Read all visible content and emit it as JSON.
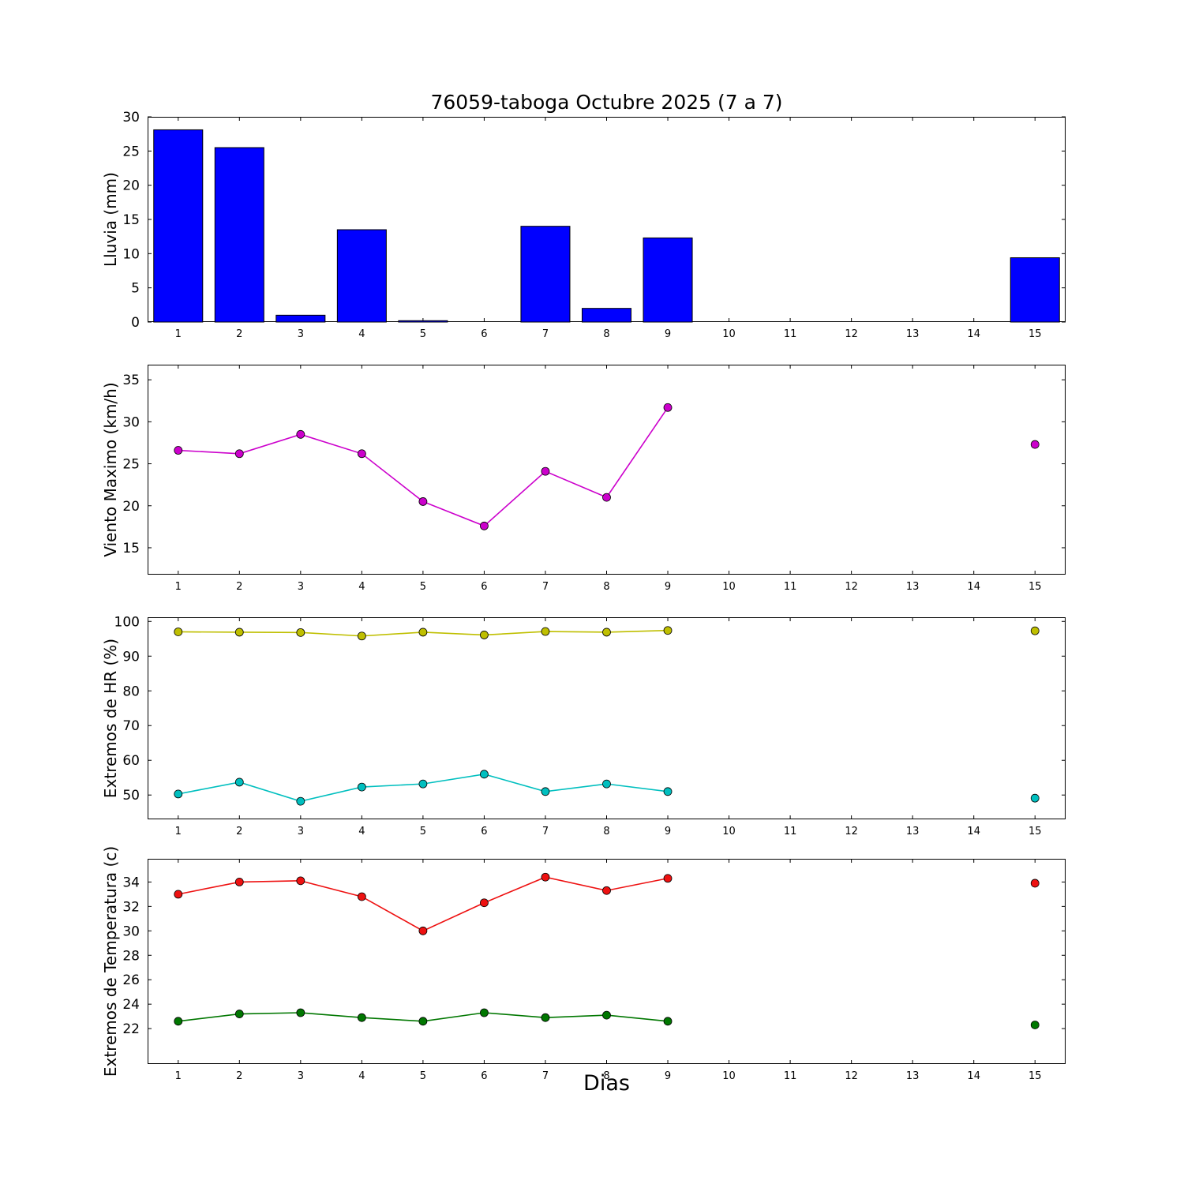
{
  "title": "76059-taboga Octubre 2025  (7 a 7)",
  "xlabel": "Dias",
  "chart_data": [
    {
      "type": "bar",
      "name": "lluvia",
      "ylabel": "Lluvia (mm)",
      "bar_color": "#0000ff",
      "bar_width": 0.8,
      "x": [
        1,
        2,
        3,
        4,
        5,
        6,
        7,
        8,
        9,
        10,
        11,
        12,
        13,
        14,
        15
      ],
      "values": [
        28.1,
        25.5,
        1.0,
        13.5,
        0.2,
        0,
        14.0,
        2.0,
        12.3,
        0,
        0,
        0,
        0,
        0,
        9.4
      ],
      "xlim": [
        0.5,
        15.5
      ],
      "ylim": [
        0,
        30
      ],
      "xticks": [
        1,
        2,
        3,
        4,
        5,
        6,
        7,
        8,
        9,
        10,
        11,
        12,
        13,
        14,
        15
      ],
      "yticks": [
        0,
        5,
        10,
        15,
        20,
        25,
        30
      ]
    },
    {
      "type": "line",
      "name": "viento-maximo",
      "ylabel": "Viento Maximo (km/h)",
      "series": [
        {
          "name": "viento-maximo",
          "color": "#cc00cc",
          "x": [
            1,
            2,
            3,
            4,
            5,
            6,
            7,
            8,
            9,
            15
          ],
          "y": [
            26.6,
            26.2,
            28.5,
            26.2,
            20.5,
            17.6,
            24.1,
            21.0,
            31.7,
            27.3
          ]
        }
      ],
      "xlim": [
        0.5,
        15.5
      ],
      "ylim": [
        11.8,
        36.8
      ],
      "xticks": [
        1,
        2,
        3,
        4,
        5,
        6,
        7,
        8,
        9,
        10,
        11,
        12,
        13,
        14,
        15
      ],
      "yticks": [
        15,
        20,
        25,
        30,
        35
      ]
    },
    {
      "type": "line",
      "name": "extremos-hr",
      "ylabel": "Extremos de HR (%)",
      "series": [
        {
          "name": "hr-maxima",
          "color": "#bfbf00",
          "x": [
            1,
            2,
            3,
            4,
            5,
            6,
            7,
            8,
            9,
            15
          ],
          "y": [
            97.0,
            96.9,
            96.8,
            95.8,
            96.9,
            96.1,
            97.1,
            96.9,
            97.4,
            97.3
          ]
        },
        {
          "name": "hr-minima",
          "color": "#00bfbf",
          "x": [
            1,
            2,
            3,
            4,
            5,
            6,
            7,
            8,
            9,
            15
          ],
          "y": [
            50.3,
            53.7,
            48.2,
            52.3,
            53.2,
            56.0,
            51.0,
            53.2,
            51.0,
            49.1
          ]
        }
      ],
      "xlim": [
        0.5,
        15.5
      ],
      "ylim": [
        43.0,
        101.2
      ],
      "xticks": [
        1,
        2,
        3,
        4,
        5,
        6,
        7,
        8,
        9,
        10,
        11,
        12,
        13,
        14,
        15
      ],
      "yticks": [
        50,
        60,
        70,
        80,
        90,
        100
      ]
    },
    {
      "type": "line",
      "name": "extremos-temperatura",
      "ylabel": "Extremos de Temperatura (c)",
      "series": [
        {
          "name": "temperatura-maxima",
          "color": "#ee1111",
          "x": [
            1,
            2,
            3,
            4,
            5,
            6,
            7,
            8,
            9,
            15
          ],
          "y": [
            33.0,
            34.0,
            34.1,
            32.8,
            30.0,
            32.3,
            34.4,
            33.3,
            34.3,
            33.9
          ]
        },
        {
          "name": "temperatura-minima",
          "color": "#007700",
          "x": [
            1,
            2,
            3,
            4,
            5,
            6,
            7,
            8,
            9,
            15
          ],
          "y": [
            22.6,
            23.2,
            23.3,
            22.9,
            22.6,
            23.3,
            22.9,
            23.1,
            22.6,
            22.3
          ]
        }
      ],
      "xlim": [
        0.5,
        15.5
      ],
      "ylim": [
        19.1,
        35.9
      ],
      "xticks": [
        1,
        2,
        3,
        4,
        5,
        6,
        7,
        8,
        9,
        10,
        11,
        12,
        13,
        14,
        15
      ],
      "yticks": [
        22,
        24,
        26,
        28,
        30,
        32,
        34
      ]
    }
  ]
}
